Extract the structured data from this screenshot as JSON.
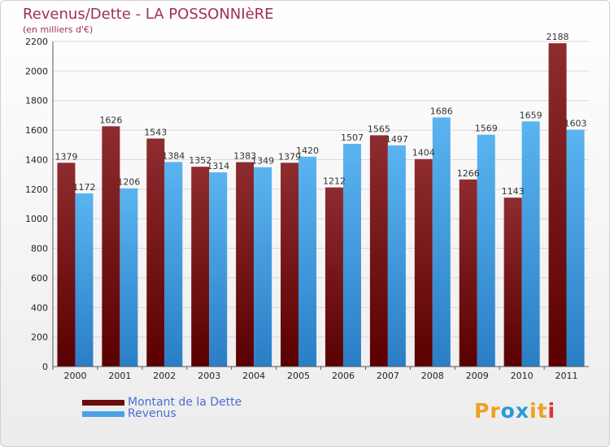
{
  "chart_data": {
    "type": "bar",
    "title": "Revenus/Dette - LA POSSONNIèRE",
    "subtitle": "(en milliers d'€)",
    "categories": [
      "2000",
      "2001",
      "2002",
      "2003",
      "2004",
      "2005",
      "2006",
      "2007",
      "2008",
      "2009",
      "2010",
      "2011"
    ],
    "series": [
      {
        "name": "Montant de la Dette",
        "color": "#7a1a1a",
        "values": [
          1379,
          1626,
          1543,
          1352,
          1383,
          1379,
          1212,
          1565,
          1404,
          1266,
          1143,
          2188
        ]
      },
      {
        "name": "Revenus",
        "color": "#4aa3e8",
        "values": [
          1172,
          1206,
          1384,
          1314,
          1349,
          1420,
          1507,
          1497,
          1686,
          1569,
          1659,
          1603
        ]
      }
    ],
    "yticks": [
      0,
      200,
      400,
      600,
      800,
      1000,
      1200,
      1400,
      1600,
      1800,
      2000,
      2200
    ],
    "ylim": [
      0,
      2200
    ],
    "grid": true,
    "legend_position": "bottom-left"
  },
  "logo": {
    "text": "Proxiti",
    "letters": [
      {
        "ch": "P",
        "color": "#f0a020"
      },
      {
        "ch": "r",
        "color": "#f0a020"
      },
      {
        "ch": "o",
        "color": "#2a9ad8"
      },
      {
        "ch": "x",
        "color": "#2a9ad8"
      },
      {
        "ch": "i",
        "color": "#f0a020"
      },
      {
        "ch": "t",
        "color": "#f0a020"
      },
      {
        "ch": "i",
        "color": "#e03030"
      }
    ]
  }
}
